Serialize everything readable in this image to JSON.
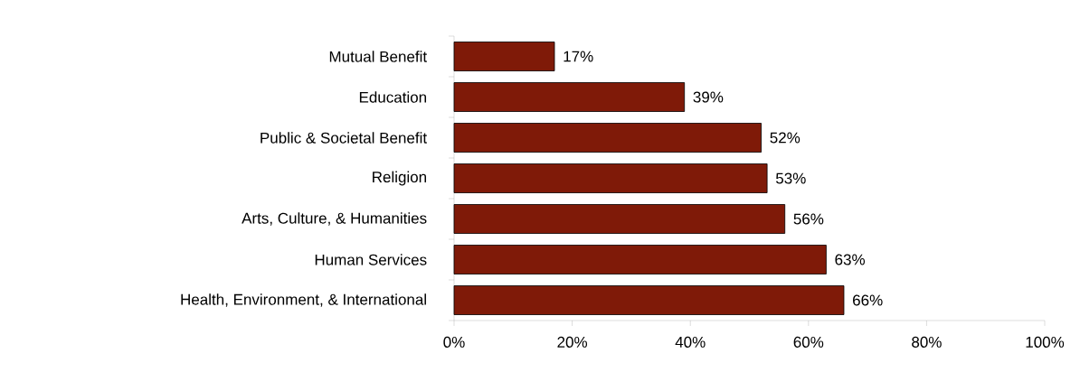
{
  "chart_data": {
    "type": "bar",
    "orientation": "horizontal",
    "categories": [
      "Mutual Benefit",
      "Education",
      "Public & Societal Benefit",
      "Religion",
      "Arts, Culture, & Humanities",
      "Human Services",
      "Health, Environment, & International"
    ],
    "values": [
      17,
      39,
      52,
      53,
      56,
      63,
      66
    ],
    "value_labels": [
      "17%",
      "39%",
      "52%",
      "53%",
      "56%",
      "63%",
      "66%"
    ],
    "color": "#7f1a08",
    "xlim": [
      0,
      100
    ],
    "xticks": [
      {
        "value": 0,
        "label": "0%"
      },
      {
        "value": 20,
        "label": "20%"
      },
      {
        "value": 40,
        "label": "40%"
      },
      {
        "value": 60,
        "label": "60%"
      },
      {
        "value": 80,
        "label": "80%"
      },
      {
        "value": 100,
        "label": "100%"
      }
    ],
    "grid": false
  }
}
